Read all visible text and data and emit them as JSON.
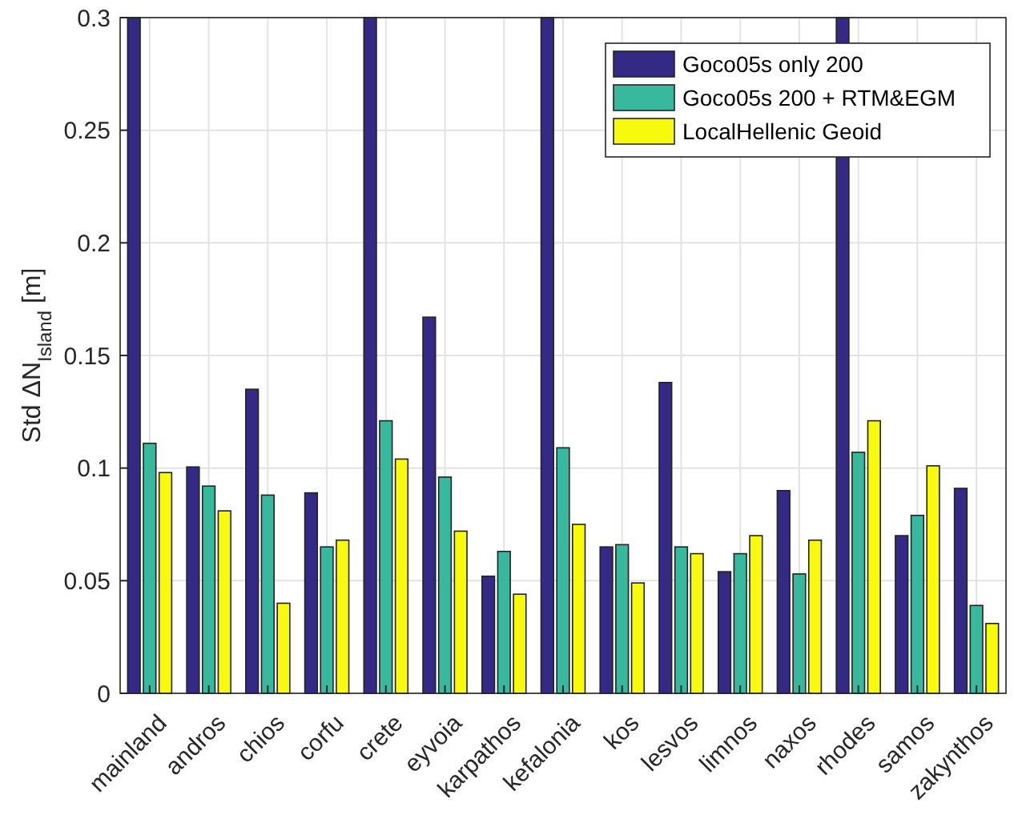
{
  "chart_data": {
    "type": "bar",
    "ylabel": "Std ΔN$_{Island}$ [m]",
    "categories": [
      "mainland",
      "andros",
      "chios",
      "corfu",
      "crete",
      "eyvoia",
      "karpathos",
      "kefalonia",
      "kos",
      "lesvos",
      "limnos",
      "naxos",
      "rhodes",
      "samos",
      "zakynthos"
    ],
    "series": [
      {
        "name": "Goco05s only 200",
        "color": "#342a86",
        "values": [
          0.3,
          0.1005,
          0.135,
          0.089,
          0.3,
          0.167,
          0.052,
          0.3,
          0.065,
          0.138,
          0.054,
          0.09,
          0.3,
          0.07,
          0.091
        ]
      },
      {
        "name": "Goco05s 200 + RTM&EGM",
        "color": "#38b99e",
        "values": [
          0.111,
          0.092,
          0.088,
          0.065,
          0.121,
          0.096,
          0.063,
          0.109,
          0.066,
          0.065,
          0.062,
          0.053,
          0.107,
          0.079,
          0.039
        ]
      },
      {
        "name": "LocalHellenic Geoid",
        "color": "#f8fa0d",
        "values": [
          0.098,
          0.081,
          0.04,
          0.068,
          0.104,
          0.072,
          0.044,
          0.075,
          0.049,
          0.062,
          0.07,
          0.068,
          0.121,
          0.101,
          0.031
        ]
      }
    ],
    "ylim": [
      0,
      0.3
    ],
    "yticks": [
      0,
      0.05,
      0.1,
      0.15,
      0.2,
      0.25,
      0.3
    ],
    "grid": true,
    "legend": "top right"
  }
}
